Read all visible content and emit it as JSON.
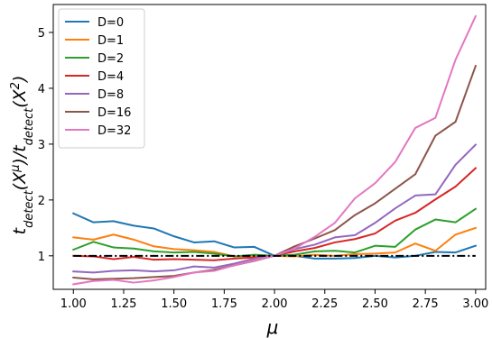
{
  "chart_data": {
    "type": "line",
    "xlabel": "μ",
    "ylabel": "t_detect(X^μ)/t_detect(X^2)",
    "ylabel_parts": {
      "t1": "t",
      "sub1": "detect",
      "open1": "(X",
      "sup1": "μ",
      "mid": ")/t",
      "sub2": "detect",
      "open2": "(X",
      "sup2": "2",
      "close": ")"
    },
    "xlim": [
      0.9,
      3.05
    ],
    "ylim": [
      0.4,
      5.5
    ],
    "xticks": [
      1.0,
      1.25,
      1.5,
      1.75,
      2.0,
      2.25,
      2.5,
      2.75,
      3.0
    ],
    "xtick_labels": [
      "1.00",
      "1.25",
      "1.50",
      "1.75",
      "2.00",
      "2.25",
      "2.50",
      "2.75",
      "3.00"
    ],
    "yticks": [
      1,
      2,
      3,
      4,
      5
    ],
    "ytick_labels": [
      "1",
      "2",
      "3",
      "4",
      "5"
    ],
    "grid": false,
    "legend_position": "top-left",
    "reference_line": {
      "y": 1.0,
      "style": "dash-dot",
      "color": "#000000"
    },
    "x": [
      1.0,
      1.1,
      1.2,
      1.3,
      1.4,
      1.5,
      1.6,
      1.7,
      1.8,
      1.9,
      2.0,
      2.1,
      2.2,
      2.3,
      2.4,
      2.5,
      2.6,
      2.7,
      2.8,
      2.9,
      3.0
    ],
    "series": [
      {
        "name": "D=0",
        "color": "#1f77b4",
        "values": [
          1.76,
          1.6,
          1.62,
          1.54,
          1.49,
          1.35,
          1.24,
          1.26,
          1.15,
          1.16,
          1.0,
          1.0,
          0.95,
          0.95,
          0.96,
          1.0,
          0.97,
          1.0,
          1.07,
          1.06,
          1.18
        ]
      },
      {
        "name": "D=1",
        "color": "#ff7f0e",
        "values": [
          1.33,
          1.29,
          1.38,
          1.29,
          1.17,
          1.12,
          1.1,
          1.07,
          0.99,
          1.0,
          1.0,
          0.99,
          1.02,
          1.0,
          1.03,
          1.04,
          1.06,
          1.22,
          1.09,
          1.38,
          1.5
        ]
      },
      {
        "name": "D=2",
        "color": "#2ca02c",
        "values": [
          1.11,
          1.25,
          1.15,
          1.13,
          1.08,
          1.06,
          1.07,
          1.04,
          0.99,
          1.02,
          1.0,
          1.02,
          1.08,
          1.09,
          1.06,
          1.18,
          1.16,
          1.47,
          1.65,
          1.6,
          1.84
        ]
      },
      {
        "name": "D=4",
        "color": "#d62728",
        "values": [
          1.0,
          0.99,
          0.94,
          0.98,
          0.93,
          0.94,
          0.93,
          0.92,
          0.95,
          0.97,
          1.0,
          1.08,
          1.14,
          1.24,
          1.3,
          1.4,
          1.63,
          1.77,
          2.01,
          2.24,
          2.57
        ]
      },
      {
        "name": "D=8",
        "color": "#9467bd",
        "values": [
          0.72,
          0.7,
          0.73,
          0.74,
          0.72,
          0.74,
          0.81,
          0.79,
          0.86,
          0.95,
          1.0,
          1.12,
          1.2,
          1.33,
          1.37,
          1.59,
          1.85,
          2.08,
          2.1,
          2.63,
          2.99
        ]
      },
      {
        "name": "D=16",
        "color": "#8c564b",
        "values": [
          0.61,
          0.58,
          0.59,
          0.6,
          0.62,
          0.64,
          0.7,
          0.75,
          0.83,
          0.91,
          1.0,
          1.17,
          1.31,
          1.46,
          1.73,
          1.94,
          2.2,
          2.46,
          3.15,
          3.4,
          4.4
        ]
      },
      {
        "name": "D=32",
        "color": "#e377c2",
        "values": [
          0.49,
          0.55,
          0.57,
          0.52,
          0.56,
          0.62,
          0.7,
          0.73,
          0.83,
          0.92,
          1.0,
          1.13,
          1.34,
          1.59,
          2.03,
          2.3,
          2.68,
          3.29,
          3.47,
          4.51,
          5.29
        ]
      }
    ]
  }
}
